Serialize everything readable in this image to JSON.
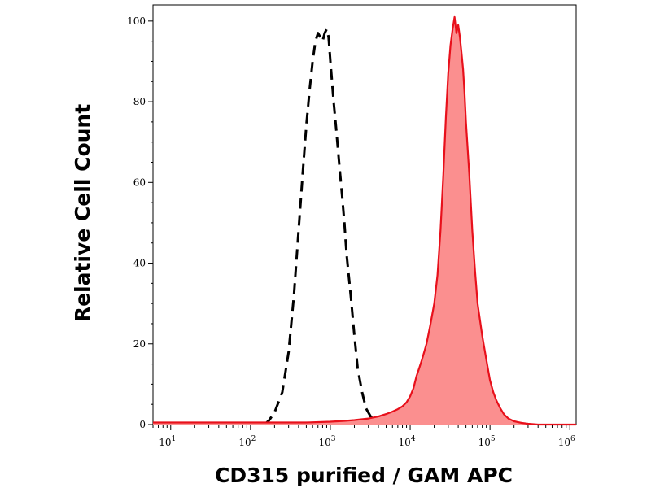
{
  "chart_data": {
    "type": "area",
    "title": "",
    "xlabel": "CD315 purified / GAM APC",
    "ylabel": "Relative Cell Count",
    "x_scale": "log",
    "xlim": [
      6,
      1200000
    ],
    "ylim": [
      0,
      104
    ],
    "x_ticks": [
      {
        "base": "10",
        "exp": "1",
        "value": 10
      },
      {
        "base": "10",
        "exp": "2",
        "value": 100
      },
      {
        "base": "10",
        "exp": "3",
        "value": 1000
      },
      {
        "base": "10",
        "exp": "4",
        "value": 10000
      },
      {
        "base": "10",
        "exp": "5",
        "value": 100000
      },
      {
        "base": "10",
        "exp": "6",
        "value": 1000000
      }
    ],
    "y_ticks": [
      {
        "label": "0",
        "value": 0
      },
      {
        "label": "20",
        "value": 20
      },
      {
        "label": "40",
        "value": 40
      },
      {
        "label": "60",
        "value": 60
      },
      {
        "label": "80",
        "value": 80
      },
      {
        "label": "100",
        "value": 100
      }
    ],
    "grid": false,
    "legend": "none",
    "series": [
      {
        "style": "dashed",
        "color": "#000000",
        "x": [
          150,
          170,
          200,
          250,
          300,
          350,
          400,
          450,
          500,
          550,
          600,
          650,
          700,
          750,
          800,
          850,
          900,
          950,
          1000,
          1100,
          1200,
          1300,
          1400,
          1500,
          1600,
          1800,
          2000,
          2200,
          2500,
          2800,
          3200,
          3600,
          4000,
          4500,
          5000,
          6000
        ],
        "values": [
          0,
          1,
          3,
          8,
          18,
          32,
          48,
          62,
          74,
          83,
          90,
          95,
          97,
          96,
          95,
          97,
          98,
          96,
          90,
          80,
          72,
          64,
          57,
          50,
          42,
          32,
          22,
          14,
          8,
          4,
          2,
          1,
          0.8,
          0.5,
          0.2,
          0
        ]
      },
      {
        "style": "filled",
        "color": "#e8101b",
        "fill": "#fb8f8f",
        "x": [
          6,
          100,
          500,
          1000,
          1500,
          2000,
          3000,
          4000,
          5000,
          6000,
          7000,
          8000,
          9000,
          10000,
          11000,
          12000,
          13000,
          14000,
          15000,
          16000,
          18000,
          20000,
          22000,
          24000,
          26000,
          28000,
          30000,
          32000,
          34000,
          36000,
          38000,
          40000,
          42000,
          44000,
          46000,
          48000,
          50000,
          55000,
          60000,
          65000,
          70000,
          80000,
          90000,
          100000,
          110000,
          120000,
          135000,
          150000,
          170000,
          200000,
          250000,
          300000,
          400000,
          600000,
          1000000,
          1200000
        ],
        "values": [
          0.5,
          0.5,
          0.5,
          0.7,
          0.9,
          1.1,
          1.5,
          2,
          2.6,
          3.2,
          3.8,
          4.5,
          5.5,
          7,
          9,
          12,
          14,
          16,
          18,
          20,
          25,
          30,
          37,
          48,
          62,
          76,
          87,
          94,
          98,
          101,
          97,
          99,
          96,
          92,
          88,
          82,
          75,
          62,
          48,
          38,
          30,
          22,
          16,
          11,
          8,
          6,
          4,
          2.5,
          1.5,
          0.8,
          0.4,
          0.2,
          0,
          0,
          0,
          0
        ]
      }
    ]
  }
}
